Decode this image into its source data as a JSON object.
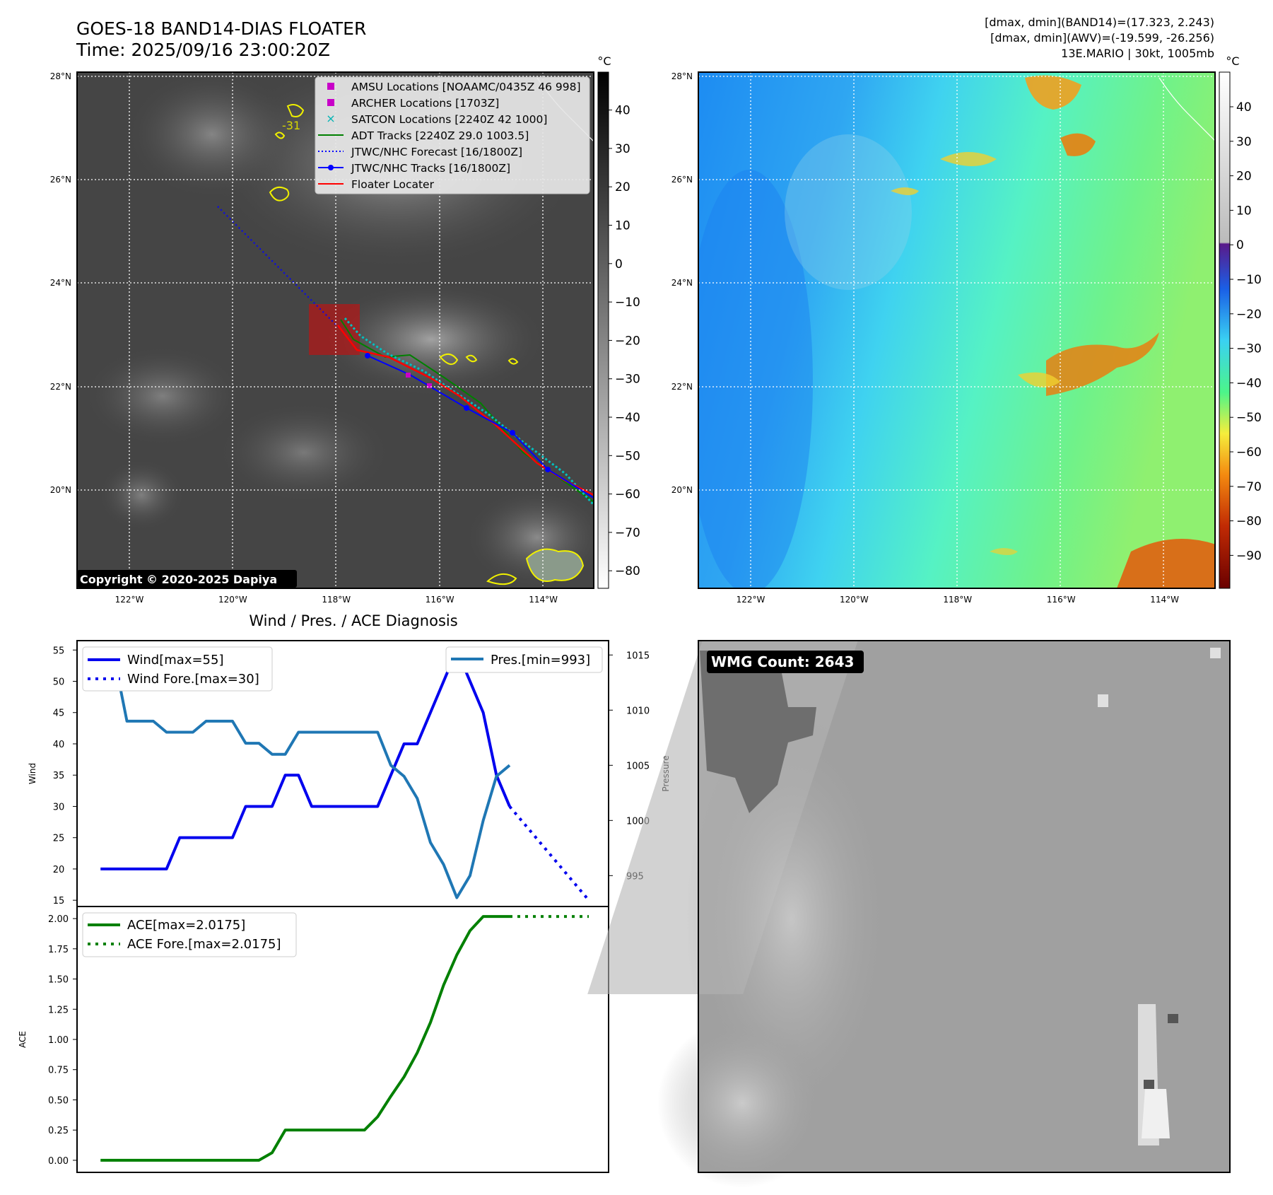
{
  "header": {
    "title": "GOES-18 BAND14-DIAS FLOATER",
    "time": "Time: 2025/09/16 23:00:20Z",
    "dmax_band14": "[dmax, dmin](BAND14)=(17.323, 2.243)",
    "dmax_awv": "[dmax, dmin](AWV)=(-19.599, -26.256)",
    "storm": "13E.MARIO | 30kt, 1005mb"
  },
  "map": {
    "lat_labels": [
      "28°N",
      "26°N",
      "24°N",
      "22°N",
      "20°N"
    ],
    "lon_labels": [
      "122°W",
      "120°W",
      "118°W",
      "116°W",
      "114°W"
    ],
    "copyright": "Copyright © 2020-2025 Dapiya",
    "contour_label": "-31",
    "legend": [
      {
        "label": "AMSU Locations [NOAAMC/0435Z 46 998]",
        "color": "#c800c8",
        "marker": "square"
      },
      {
        "label": "ARCHER Locations [1703Z]",
        "color": "#c800c8",
        "marker": "square"
      },
      {
        "label": "SATCON Locations [2240Z 42 1000]",
        "color": "#00b4b4",
        "marker": "x"
      },
      {
        "label": "ADT Tracks [2240Z 29.0 1003.5]",
        "color": "#008000",
        "marker": "line"
      },
      {
        "label": "JTWC/NHC Forecast [16/1800Z]",
        "color": "#0000ff",
        "marker": "dotted"
      },
      {
        "label": "JTWC/NHC Tracks [16/1800Z]",
        "color": "#0000ff",
        "marker": "line-dot"
      },
      {
        "label": "Floater Locater",
        "color": "#ff0000",
        "marker": "line"
      }
    ]
  },
  "colorbar_ir": {
    "unit": "°C",
    "ticks": [
      "40",
      "30",
      "20",
      "10",
      "0",
      "−10",
      "−20",
      "−30",
      "−40",
      "−50",
      "−60",
      "−70",
      "−80"
    ]
  },
  "colorbar_wv": {
    "unit": "°C",
    "ticks": [
      "40",
      "30",
      "20",
      "10",
      "0",
      "−10",
      "−20",
      "−30",
      "−40",
      "−50",
      "−60",
      "−70",
      "−80",
      "−90"
    ]
  },
  "wmg": {
    "label": "WMG Count: 2643"
  },
  "chart_data": [
    {
      "type": "line",
      "title": "Wind / Pres. / ACE Diagnosis",
      "ylabel": "Wind",
      "y2label": "Pressure",
      "ylim": [
        14,
        56.5
      ],
      "y2lim": [
        992.2,
        1016.3
      ],
      "yticks": [
        15,
        20,
        25,
        30,
        35,
        40,
        45,
        50,
        55
      ],
      "y2ticks": [
        995,
        1000,
        1005,
        1010,
        1015
      ],
      "series": [
        {
          "name": "Wind[max=55]",
          "color": "#0000ee",
          "style": "solid",
          "x": [
            0,
            1,
            2,
            3,
            4,
            5,
            6,
            7,
            8,
            9,
            10,
            11,
            12,
            13,
            14,
            15,
            16,
            17,
            18,
            19,
            20,
            21,
            22,
            23,
            24,
            25,
            26,
            27,
            28,
            29,
            30,
            31
          ],
          "values": [
            20,
            20,
            20,
            20,
            20,
            20,
            25,
            25,
            25,
            25,
            25,
            30,
            30,
            30,
            35,
            35,
            30,
            30,
            30,
            30,
            30,
            30,
            35,
            40,
            40,
            45,
            50,
            55,
            50,
            45,
            35,
            30
          ]
        },
        {
          "name": "Wind Fore.[max=30]",
          "color": "#0000ee",
          "style": "dotted",
          "x": [
            31,
            37
          ],
          "values": [
            30,
            15
          ]
        },
        {
          "name": "Pres.[min=993]",
          "color": "#1f77b4",
          "style": "solid",
          "axis": "right",
          "x": [
            0,
            1,
            2,
            3,
            4,
            5,
            6,
            7,
            8,
            9,
            10,
            11,
            12,
            13,
            14,
            15,
            16,
            17,
            18,
            19,
            20,
            21,
            22,
            23,
            24,
            25,
            26,
            27,
            28,
            29,
            30,
            31
          ],
          "values": [
            1015,
            1015,
            1009,
            1009,
            1009,
            1008,
            1008,
            1008,
            1009,
            1009,
            1009,
            1007,
            1007,
            1006,
            1006,
            1008,
            1008,
            1008,
            1008,
            1008,
            1008,
            1008,
            1005,
            1004,
            1002,
            998,
            996,
            993,
            995,
            1000,
            1004,
            1005
          ]
        }
      ]
    },
    {
      "type": "line",
      "ylabel": "ACE",
      "ylim": [
        -0.1,
        2.1
      ],
      "yticks": [
        0.0,
        0.25,
        0.5,
        0.75,
        1.0,
        1.25,
        1.5,
        1.75,
        2.0
      ],
      "ytick_labels": [
        "0.00",
        "0.25",
        "0.50",
        "0.75",
        "1.00",
        "1.25",
        "1.50",
        "1.75",
        "2.00"
      ],
      "series": [
        {
          "name": "ACE[max=2.0175]",
          "color": "#008000",
          "style": "solid",
          "x": [
            0,
            1,
            2,
            3,
            4,
            5,
            6,
            7,
            8,
            9,
            10,
            11,
            12,
            13,
            14,
            15,
            16,
            17,
            18,
            19,
            20,
            21,
            22,
            23,
            24,
            25,
            26,
            27,
            28,
            29,
            30,
            31
          ],
          "values": [
            0,
            0,
            0,
            0,
            0,
            0,
            0,
            0,
            0,
            0,
            0,
            0,
            0,
            0.0625,
            0.25,
            0.25,
            0.25,
            0.25,
            0.25,
            0.25,
            0.25,
            0.36,
            0.53,
            0.69,
            0.89,
            1.14,
            1.45,
            1.7,
            1.9,
            2.0175,
            2.0175,
            2.0175
          ]
        },
        {
          "name": "ACE Fore.[max=2.0175]",
          "color": "#008000",
          "style": "dotted",
          "x": [
            31,
            37
          ],
          "values": [
            2.0175,
            2.0175
          ]
        }
      ]
    }
  ]
}
